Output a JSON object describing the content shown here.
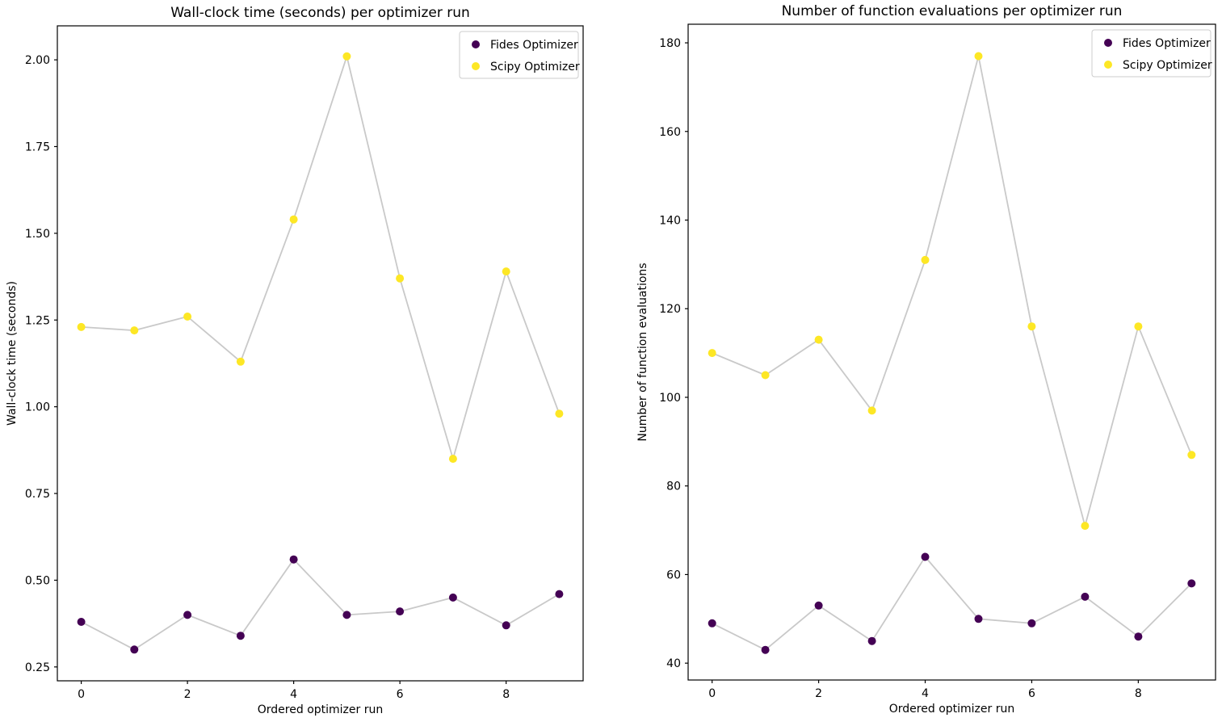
{
  "page": {
    "background": "#ffffff",
    "text_color": "#000000",
    "spine_color": "#000000"
  },
  "chart_data": [
    {
      "type": "scatter",
      "title": "Wall-clock time (seconds) per optimizer run",
      "xlabel": "Ordered optimizer run",
      "ylabel": "Wall-clock time (seconds)",
      "x": [
        0,
        1,
        2,
        3,
        4,
        5,
        6,
        7,
        8,
        9
      ],
      "series": [
        {
          "name": "Fides Optimizer",
          "color": "#440154",
          "values": [
            0.38,
            0.3,
            0.4,
            0.34,
            0.56,
            0.4,
            0.41,
            0.45,
            0.37,
            0.46
          ]
        },
        {
          "name": "Scipy Optimizer",
          "color": "#fde725",
          "values": [
            1.23,
            1.22,
            1.26,
            1.13,
            1.54,
            2.01,
            1.37,
            0.85,
            1.39,
            0.98
          ]
        }
      ],
      "connector_line_color": "#c9c9c9",
      "xlim": [
        -0.45,
        9.45
      ],
      "ylim": [
        0.21,
        2.098
      ],
      "xticks": [
        0,
        2,
        4,
        6,
        8
      ],
      "xtick_labels": [
        "0",
        "2",
        "4",
        "6",
        "8"
      ],
      "yticks": [
        0.25,
        0.5,
        0.75,
        1.0,
        1.25,
        1.5,
        1.75,
        2.0
      ],
      "ytick_labels": [
        "0.25",
        "0.50",
        "0.75",
        "1.00",
        "1.25",
        "1.50",
        "1.75",
        "2.00"
      ],
      "grid": false,
      "legend_position": "upper right",
      "legend_entries": [
        "Fides Optimizer",
        "Scipy Optimizer"
      ]
    },
    {
      "type": "scatter",
      "title": "Number of function evaluations per optimizer run",
      "xlabel": "Ordered optimizer run",
      "ylabel": "Number of function evaluations",
      "x": [
        0,
        1,
        2,
        3,
        4,
        5,
        6,
        7,
        8,
        9
      ],
      "series": [
        {
          "name": "Fides Optimizer",
          "color": "#440154",
          "values": [
            49,
            43,
            53,
            45,
            64,
            50,
            49,
            55,
            46,
            58
          ]
        },
        {
          "name": "Scipy Optimizer",
          "color": "#fde725",
          "values": [
            110,
            105,
            113,
            97,
            131,
            177,
            116,
            71,
            116,
            87
          ]
        }
      ],
      "connector_line_color": "#c9c9c9",
      "xlim": [
        -0.45,
        9.45
      ],
      "ylim": [
        36.2,
        184.2
      ],
      "xticks": [
        0,
        2,
        4,
        6,
        8
      ],
      "xtick_labels": [
        "0",
        "2",
        "4",
        "6",
        "8"
      ],
      "yticks": [
        40,
        60,
        80,
        100,
        120,
        140,
        160,
        180
      ],
      "ytick_labels": [
        "40",
        "60",
        "80",
        "100",
        "120",
        "140",
        "160",
        "180"
      ],
      "grid": false,
      "legend_position": "upper right",
      "legend_entries": [
        "Fides Optimizer",
        "Scipy Optimizer"
      ]
    }
  ]
}
